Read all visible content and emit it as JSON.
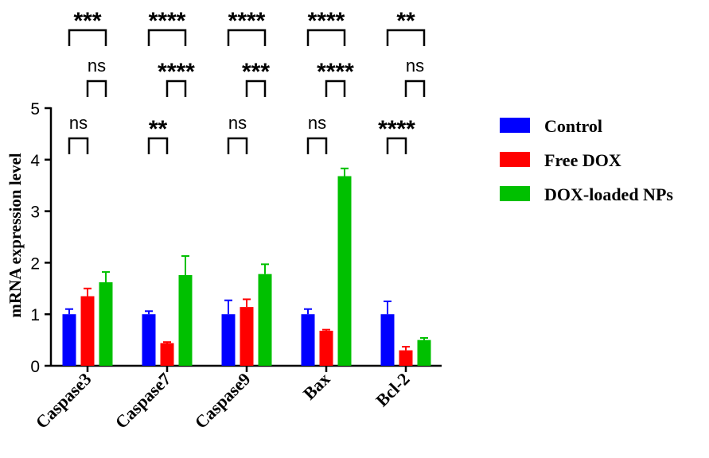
{
  "chart_data": {
    "type": "bar",
    "title": "",
    "ylabel": "mRNA expression level",
    "xlabel": "",
    "ylim": [
      0,
      5
    ],
    "yticks": [
      0,
      1,
      2,
      3,
      4,
      5
    ],
    "categories": [
      "Caspase3",
      "Caspase7",
      "Caspase9",
      "Bax",
      "Bcl-2"
    ],
    "series": [
      {
        "name": "Control",
        "color": "#0000ff",
        "values": [
          1.0,
          1.0,
          1.0,
          1.0,
          1.0
        ],
        "errors": [
          0.1,
          0.06,
          0.27,
          0.1,
          0.25
        ]
      },
      {
        "name": "Free DOX",
        "color": "#ff0000",
        "values": [
          1.35,
          0.44,
          1.14,
          0.68,
          0.3
        ],
        "errors": [
          0.15,
          0.02,
          0.15,
          0.02,
          0.07
        ]
      },
      {
        "name": "DOX-loaded NPs",
        "color": "#00c000",
        "values": [
          1.62,
          1.76,
          1.78,
          3.68,
          0.5
        ],
        "errors": [
          0.2,
          0.37,
          0.19,
          0.15,
          0.04
        ]
      }
    ],
    "legend_position": "right",
    "significance": [
      {
        "category": 0,
        "pair": "control-nps",
        "label": "***"
      },
      {
        "category": 0,
        "pair": "dox-nps",
        "label": "ns"
      },
      {
        "category": 0,
        "pair": "control-dox",
        "label": "ns"
      },
      {
        "category": 1,
        "pair": "control-nps",
        "label": "****"
      },
      {
        "category": 1,
        "pair": "dox-nps",
        "label": "****"
      },
      {
        "category": 1,
        "pair": "control-dox",
        "label": "**"
      },
      {
        "category": 2,
        "pair": "control-nps",
        "label": "****"
      },
      {
        "category": 2,
        "pair": "dox-nps",
        "label": "***"
      },
      {
        "category": 2,
        "pair": "control-dox",
        "label": "ns"
      },
      {
        "category": 3,
        "pair": "control-nps",
        "label": "****"
      },
      {
        "category": 3,
        "pair": "dox-nps",
        "label": "****"
      },
      {
        "category": 3,
        "pair": "control-dox",
        "label": "ns"
      },
      {
        "category": 4,
        "pair": "control-nps",
        "label": "**"
      },
      {
        "category": 4,
        "pair": "dox-nps",
        "label": "ns"
      },
      {
        "category": 4,
        "pair": "control-dox",
        "label": "****"
      }
    ]
  }
}
